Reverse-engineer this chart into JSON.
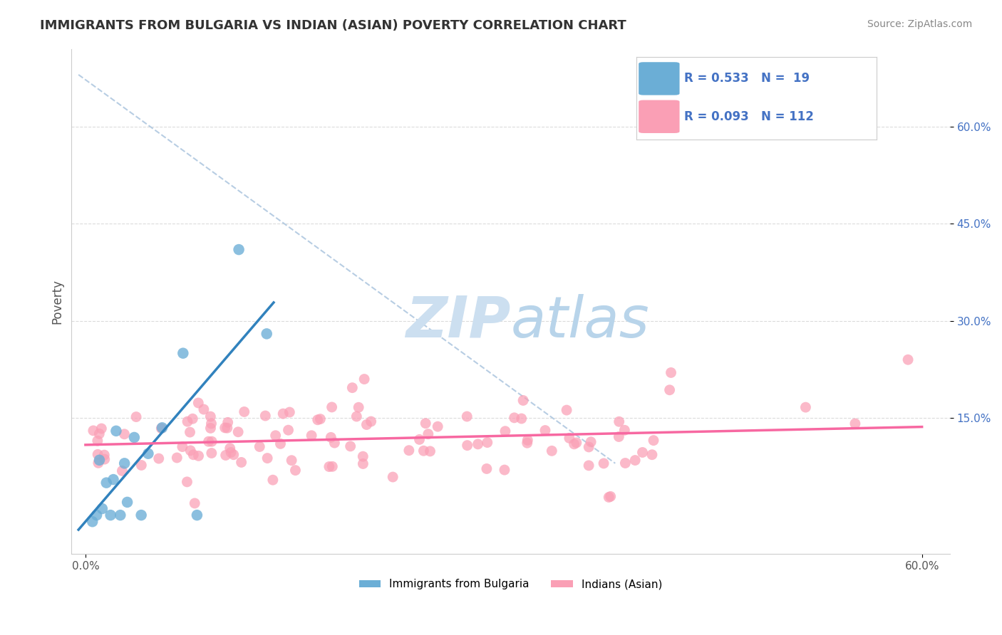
{
  "title": "IMMIGRANTS FROM BULGARIA VS INDIAN (ASIAN) POVERTY CORRELATION CHART",
  "source_text": "Source: ZipAtlas.com",
  "ylabel": "Poverty",
  "legend_r1": "R = 0.533",
  "legend_n1": "N =  19",
  "legend_r2": "R = 0.093",
  "legend_n2": "N = 112",
  "legend_label1": "Immigrants from Bulgaria",
  "legend_label2": "Indians (Asian)",
  "color_bulgaria": "#6baed6",
  "color_india": "#fa9fb5",
  "line_color_bulgaria": "#3182bd",
  "line_color_india": "#f768a1",
  "dashed_line_color": "#b0c8e0",
  "watermark_zip_color": "#ccdff0",
  "watermark_atlas_color": "#b8d4ea",
  "grid_color": "#cccccc",
  "title_color": "#333333",
  "source_color": "#888888",
  "tick_color": "#555555",
  "ytick_color": "#4472c4",
  "legend_text_color": "#4472c4"
}
